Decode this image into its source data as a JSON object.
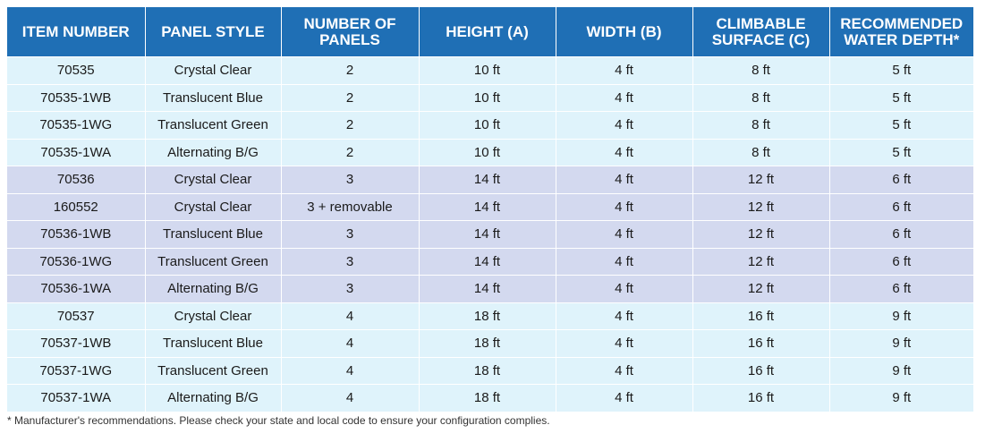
{
  "table": {
    "headers": [
      "ITEM NUMBER",
      "PANEL STYLE",
      "NUMBER OF PANELS",
      "HEIGHT (A)",
      "WIDTH (B)",
      "CLIMBABLE SURFACE (C)",
      "RECOMMENDED WATER DEPTH*"
    ],
    "rows": [
      [
        "70535",
        "Crystal Clear",
        "2",
        "10 ft",
        "4 ft",
        "8 ft",
        "5 ft"
      ],
      [
        "70535-1WB",
        "Translucent Blue",
        "2",
        "10 ft",
        "4 ft",
        "8 ft",
        "5 ft"
      ],
      [
        "70535-1WG",
        "Translucent Green",
        "2",
        "10 ft",
        "4 ft",
        "8 ft",
        "5 ft"
      ],
      [
        "70535-1WA",
        "Alternating B/G",
        "2",
        "10 ft",
        "4 ft",
        "8 ft",
        "5 ft"
      ],
      [
        "70536",
        "Crystal Clear",
        "3",
        "14 ft",
        "4 ft",
        "12 ft",
        "6 ft"
      ],
      [
        "160552",
        "Crystal Clear",
        "3 + removable",
        "14 ft",
        "4 ft",
        "12 ft",
        "6 ft"
      ],
      [
        "70536-1WB",
        "Translucent Blue",
        "3",
        "14 ft",
        "4 ft",
        "12 ft",
        "6 ft"
      ],
      [
        "70536-1WG",
        "Translucent Green",
        "3",
        "14 ft",
        "4 ft",
        "12 ft",
        "6 ft"
      ],
      [
        "70536-1WA",
        "Alternating B/G",
        "3",
        "14 ft",
        "4 ft",
        "12 ft",
        "6 ft"
      ],
      [
        "70537",
        "Crystal Clear",
        "4",
        "18 ft",
        "4 ft",
        "16 ft",
        "9 ft"
      ],
      [
        "70537-1WB",
        "Translucent Blue",
        "4",
        "18 ft",
        "4 ft",
        "16 ft",
        "9 ft"
      ],
      [
        "70537-1WG",
        "Translucent Green",
        "4",
        "18 ft",
        "4 ft",
        "16 ft",
        "9 ft"
      ],
      [
        "70537-1WA",
        "Alternating B/G",
        "4",
        "18 ft",
        "4 ft",
        "16 ft",
        "9 ft"
      ]
    ]
  },
  "footnote": "* Manufacturer's recommendations. Please check your state and local code to ensure your configuration complies.",
  "colors": {
    "header_bg": "#1f6fb5",
    "group_2_panel_bg": "#dff3fb",
    "group_3_panel_bg": "#d3d9ef",
    "group_4_panel_bg": "#dff3fb"
  }
}
